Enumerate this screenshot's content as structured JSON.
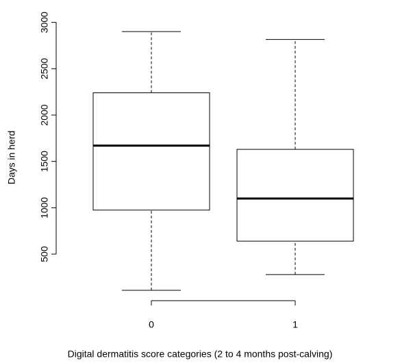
{
  "chart_data": {
    "type": "box",
    "x_label": "Digital dermatitis score categories (2 to 4 months post-calving)",
    "y_label": "Days in herd",
    "categories": [
      "0",
      "1"
    ],
    "min": [
      110,
      280
    ],
    "q1": [
      975,
      640
    ],
    "median": [
      1670,
      1100
    ],
    "q3": [
      2240,
      1630
    ],
    "max": [
      2900,
      2815
    ],
    "color": "#000000",
    "ylim": [
      -2,
      3012
    ],
    "yticks": [
      500,
      1000,
      1500,
      2000,
      2500,
      3000
    ]
  }
}
